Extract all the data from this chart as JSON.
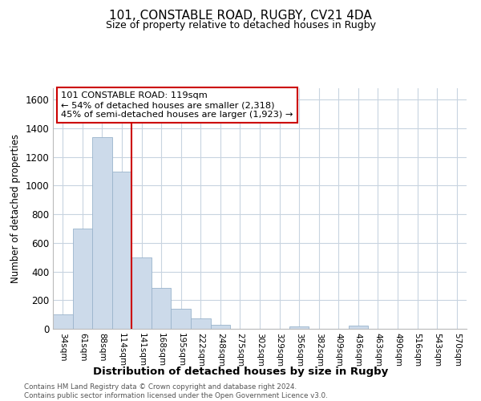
{
  "title": "101, CONSTABLE ROAD, RUGBY, CV21 4DA",
  "subtitle": "Size of property relative to detached houses in Rugby",
  "xlabel": "Distribution of detached houses by size in Rugby",
  "ylabel": "Number of detached properties",
  "bar_labels": [
    "34sqm",
    "61sqm",
    "88sqm",
    "114sqm",
    "141sqm",
    "168sqm",
    "195sqm",
    "222sqm",
    "248sqm",
    "275sqm",
    "302sqm",
    "329sqm",
    "356sqm",
    "382sqm",
    "409sqm",
    "436sqm",
    "463sqm",
    "490sqm",
    "516sqm",
    "543sqm",
    "570sqm"
  ],
  "bar_values": [
    100,
    700,
    1340,
    1100,
    500,
    285,
    140,
    75,
    30,
    0,
    0,
    0,
    15,
    0,
    0,
    20,
    0,
    0,
    0,
    0,
    0
  ],
  "bar_color": "#ccdaea",
  "bar_edge_color": "#9ab4cc",
  "ylim": [
    0,
    1680
  ],
  "yticks": [
    0,
    200,
    400,
    600,
    800,
    1000,
    1200,
    1400,
    1600
  ],
  "vline_color": "#cc0000",
  "annotation_title": "101 CONSTABLE ROAD: 119sqm",
  "annotation_line1": "← 54% of detached houses are smaller (2,318)",
  "annotation_line2": "45% of semi-detached houses are larger (1,923) →",
  "footer1": "Contains HM Land Registry data © Crown copyright and database right 2024.",
  "footer2": "Contains public sector information licensed under the Open Government Licence v3.0.",
  "bg_color": "#ffffff",
  "grid_color": "#c8d4e0"
}
